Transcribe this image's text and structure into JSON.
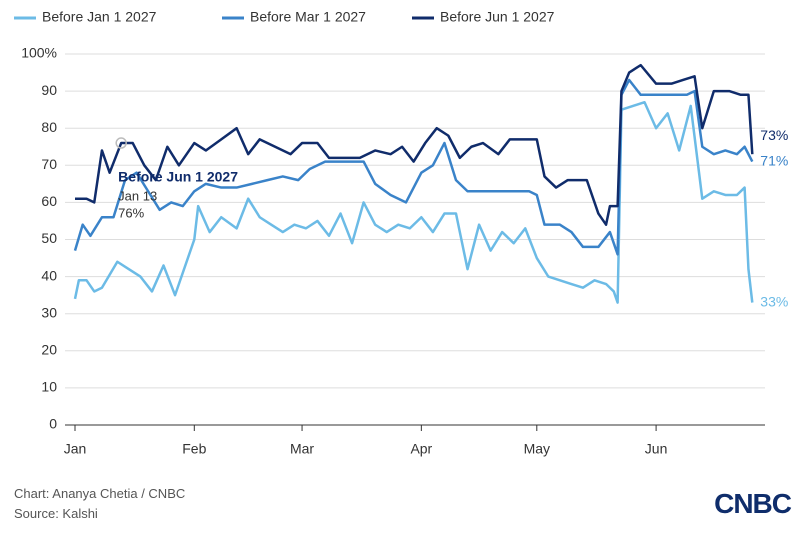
{
  "chart_data": {
    "type": "line",
    "xlim": [
      -2.6,
      179.3
    ],
    "xticks": [
      {
        "value": 0,
        "label": "Jan"
      },
      {
        "value": 31,
        "label": "Feb"
      },
      {
        "value": 59,
        "label": "Mar"
      },
      {
        "value": 90,
        "label": "Apr"
      },
      {
        "value": 120,
        "label": "May"
      },
      {
        "value": 151,
        "label": "Jun"
      }
    ],
    "ylim": [
      0,
      100
    ],
    "yticks": [
      0,
      10,
      20,
      30,
      40,
      50,
      60,
      70,
      80,
      90,
      {
        "value": 100,
        "label": "100%"
      }
    ],
    "grid": true,
    "series": [
      {
        "name": "Before Jan 1 2027",
        "color": "#6cbbe6",
        "end_label": "33%",
        "x": [
          0,
          1,
          3,
          5,
          7,
          11,
          14,
          17,
          20,
          23,
          26,
          31,
          32,
          35,
          38,
          42,
          45,
          48,
          51,
          54,
          57,
          60,
          63,
          66,
          69,
          72,
          75,
          78,
          81,
          84,
          87,
          90,
          93,
          96,
          99,
          102,
          105,
          108,
          111,
          114,
          117,
          120,
          123,
          126,
          129,
          132,
          135,
          138,
          140,
          141,
          142,
          145,
          148,
          151,
          154,
          157,
          160,
          163,
          166,
          169,
          172,
          174,
          175,
          176
        ],
        "values": [
          34,
          39,
          39,
          36,
          37,
          44,
          42,
          40,
          36,
          43,
          35,
          50,
          59,
          52,
          56,
          53,
          61,
          56,
          54,
          52,
          54,
          53,
          55,
          51,
          57,
          49,
          60,
          54,
          52,
          54,
          53,
          56,
          52,
          57,
          57,
          42,
          54,
          47,
          52,
          49,
          53,
          45,
          40,
          39,
          38,
          37,
          39,
          38,
          36,
          33,
          85,
          86,
          87,
          80,
          84,
          74,
          86,
          61,
          63,
          62,
          62,
          64,
          42,
          33
        ]
      },
      {
        "name": "Before Mar 1 2027",
        "color": "#3a83c9",
        "end_label": "71%",
        "x": [
          0,
          2,
          4,
          7,
          10,
          13,
          16,
          19,
          22,
          25,
          28,
          31,
          34,
          38,
          42,
          46,
          50,
          54,
          58,
          61,
          65,
          70,
          75,
          78,
          82,
          86,
          90,
          93,
          96,
          99,
          102,
          106,
          110,
          114,
          118,
          120,
          122,
          126,
          129,
          132,
          136,
          139,
          141,
          142,
          144,
          147,
          151,
          155,
          159,
          161,
          163,
          166,
          169,
          172,
          174,
          176
        ],
        "values": [
          47,
          54,
          51,
          56,
          56,
          66,
          68,
          63,
          58,
          60,
          59,
          63,
          65,
          64,
          64,
          65,
          66,
          67,
          66,
          69,
          71,
          71,
          71,
          65,
          62,
          60,
          68,
          70,
          76,
          66,
          63,
          63,
          63,
          63,
          63,
          62,
          54,
          54,
          52,
          48,
          48,
          52,
          46,
          89,
          93,
          89,
          89,
          89,
          89,
          90,
          75,
          73,
          74,
          73,
          75,
          71
        ]
      },
      {
        "name": "Before Jun 1 2027",
        "color": "#102c6b",
        "end_label": "73%",
        "x": [
          0,
          3,
          5,
          7,
          9,
          12,
          15,
          18,
          21,
          24,
          27,
          31,
          34,
          38,
          42,
          45,
          48,
          52,
          56,
          59,
          63,
          66,
          70,
          74,
          78,
          82,
          85,
          88,
          91,
          94,
          97,
          100,
          103,
          106,
          110,
          113,
          117,
          120,
          122,
          125,
          128,
          133,
          136,
          138,
          139,
          141,
          142,
          144,
          147,
          151,
          155,
          158,
          161,
          163,
          166,
          170,
          173,
          175,
          176
        ],
        "values": [
          61,
          61,
          60,
          74,
          68,
          76,
          76,
          70,
          66,
          75,
          70,
          76,
          74,
          77,
          80,
          73,
          77,
          75,
          73,
          76,
          76,
          72,
          72,
          72,
          74,
          73,
          75,
          71,
          76,
          80,
          78,
          72,
          75,
          76,
          73,
          77,
          77,
          77,
          67,
          64,
          66,
          66,
          57,
          54,
          59,
          59,
          90,
          95,
          97,
          92,
          92,
          93,
          94,
          80,
          90,
          90,
          89,
          89,
          73
        ]
      }
    ],
    "tooltip": {
      "title": "Before Jun 1 2027",
      "date": "Jan 13",
      "value_label": "76%",
      "x": 12,
      "value": 76
    }
  },
  "footer": {
    "credit": "Chart: Ananya Chetia / CNBC",
    "source": "Source: Kalshi",
    "logo": "CNBC"
  }
}
